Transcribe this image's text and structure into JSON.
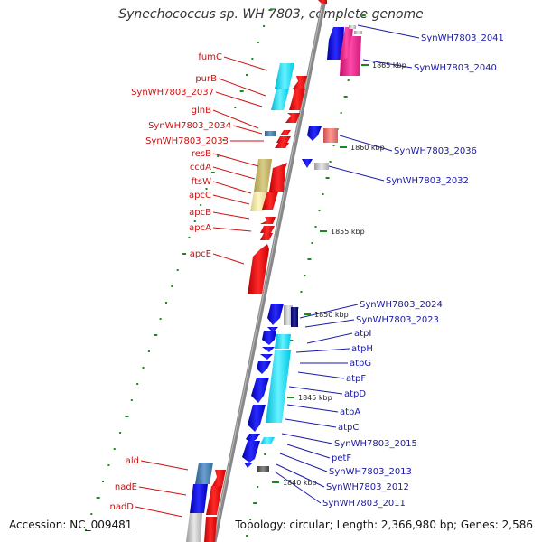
{
  "title": "Synechococcus sp. WH 7803, complete genome",
  "footer": {
    "accession": "Accession: NC_009481",
    "summary": "Topology: circular; Length: 2,366,980 bp; Genes: 2,586"
  },
  "colors": {
    "forward_strand": "#ee1111",
    "reverse_strand": "#1111ee",
    "label_forward": "#cc1111",
    "label_reverse": "#1a1aa6",
    "backbone": "#888888"
  },
  "kbp_markers": [
    {
      "text": "1865 kbp"
    },
    {
      "text": "1860 kbp"
    },
    {
      "text": "1855 kbp"
    },
    {
      "text": "1850 kbp"
    },
    {
      "text": "1845 kbp"
    },
    {
      "text": "1840 kbp"
    }
  ],
  "left_labels": [
    {
      "text": "fumC"
    },
    {
      "text": "purB"
    },
    {
      "text": "SynWH7803_2037"
    },
    {
      "text": "glnB"
    },
    {
      "text": "SynWH7803_2034"
    },
    {
      "text": "SynWH7803_2033"
    },
    {
      "text": "resB"
    },
    {
      "text": "ccdA"
    },
    {
      "text": "ftsW"
    },
    {
      "text": "apcC"
    },
    {
      "text": "apcB"
    },
    {
      "text": "apcA"
    },
    {
      "text": "apcE"
    },
    {
      "text": "ald"
    },
    {
      "text": "nadE"
    },
    {
      "text": "nadD"
    }
  ],
  "right_labels": [
    {
      "text": "SynWH7803_2041"
    },
    {
      "text": "SynWH7803_2040"
    },
    {
      "text": "SynWH7803_2036"
    },
    {
      "text": "SynWH7803_2032"
    },
    {
      "text": "SynWH7803_2024"
    },
    {
      "text": "SynWH7803_2023"
    },
    {
      "text": "atpI"
    },
    {
      "text": "atpH"
    },
    {
      "text": "atpG"
    },
    {
      "text": "atpF"
    },
    {
      "text": "atpD"
    },
    {
      "text": "atpA"
    },
    {
      "text": "atpC"
    },
    {
      "text": "SynWH7803_2015"
    },
    {
      "text": "petF"
    },
    {
      "text": "SynWH7803_2013"
    },
    {
      "text": "SynWH7803_2012"
    },
    {
      "text": "SynWH7803_2011"
    }
  ]
}
